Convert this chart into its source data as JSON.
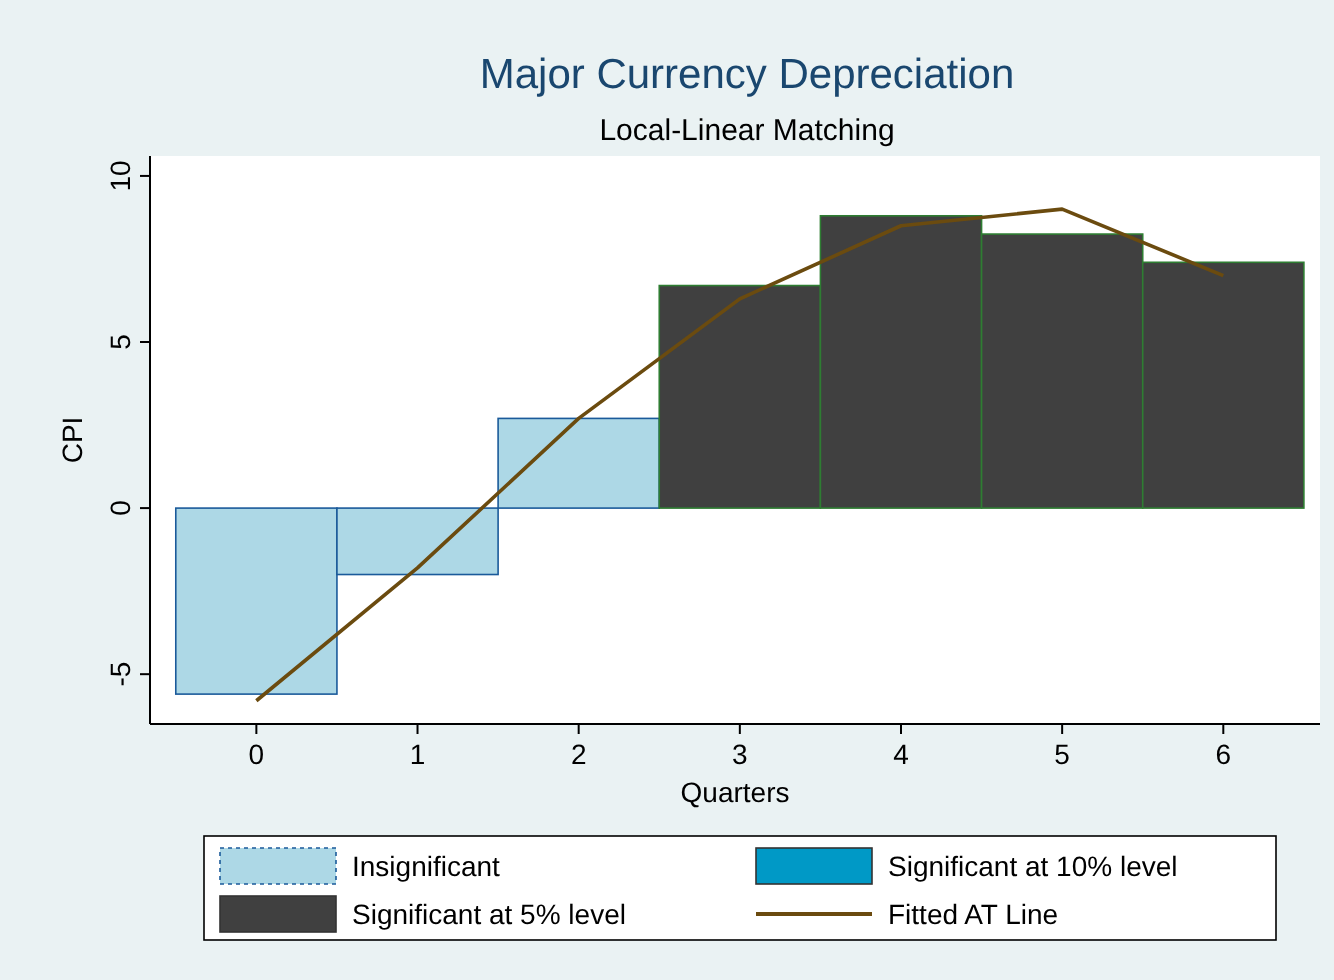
{
  "chart_data": {
    "type": "bar",
    "title": "Major Currency Depreciation",
    "subtitle": "Local-Linear Matching",
    "xlabel": "Quarters",
    "ylabel": "CPI",
    "x": [
      0,
      1,
      2,
      3,
      4,
      5,
      6
    ],
    "xlim": [
      -0.66,
      6.6
    ],
    "xticks": [
      0,
      1,
      2,
      3,
      4,
      5,
      6
    ],
    "ylim": [
      -6.5,
      10.6
    ],
    "yticks": [
      -5,
      0,
      5,
      10
    ],
    "grid": false,
    "legend": "bottom",
    "series": [
      {
        "name": "Insignificant",
        "color": "#add8e6",
        "values": [
          -5.6,
          -2.0,
          2.7,
          null,
          null,
          null,
          null
        ]
      },
      {
        "name": "Significant at 10% level",
        "color": "#0099c6",
        "values": [
          null,
          null,
          null,
          null,
          null,
          null,
          null
        ]
      },
      {
        "name": "Significant at 5% level",
        "color": "#404040",
        "values": [
          null,
          null,
          null,
          6.7,
          8.8,
          8.25,
          7.4
        ]
      },
      {
        "name": "Fitted AT Line",
        "type": "line",
        "color": "#6b4b0f",
        "values": [
          -5.8,
          -1.8,
          2.7,
          6.3,
          8.5,
          9.0,
          7.0
        ]
      }
    ]
  }
}
